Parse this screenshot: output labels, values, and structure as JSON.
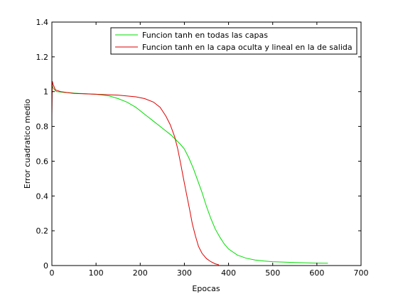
{
  "chart_data": {
    "type": "line",
    "title": "",
    "xlabel": "Epocas",
    "ylabel": "Error cuadratico medio",
    "xlim": [
      0,
      700
    ],
    "ylim": [
      0,
      1.4
    ],
    "x_ticks": [
      0,
      100,
      200,
      300,
      400,
      500,
      600,
      700
    ],
    "y_ticks": [
      0,
      0.2,
      0.4,
      0.6,
      0.8,
      1,
      1.2,
      1.4
    ],
    "grid": false,
    "legend_position": "top-right",
    "series": [
      {
        "name": "Funcion tanh en todas las capas",
        "color": "#00dd00",
        "points": [
          [
            0,
            1.04
          ],
          [
            3,
            1.02
          ],
          [
            10,
            1.0
          ],
          [
            30,
            0.995
          ],
          [
            60,
            0.99
          ],
          [
            100,
            0.985
          ],
          [
            130,
            0.975
          ],
          [
            150,
            0.96
          ],
          [
            170,
            0.94
          ],
          [
            190,
            0.91
          ],
          [
            210,
            0.87
          ],
          [
            230,
            0.83
          ],
          [
            250,
            0.79
          ],
          [
            270,
            0.75
          ],
          [
            290,
            0.7
          ],
          [
            300,
            0.67
          ],
          [
            310,
            0.62
          ],
          [
            320,
            0.56
          ],
          [
            330,
            0.49
          ],
          [
            340,
            0.42
          ],
          [
            350,
            0.34
          ],
          [
            360,
            0.27
          ],
          [
            370,
            0.21
          ],
          [
            380,
            0.165
          ],
          [
            390,
            0.125
          ],
          [
            400,
            0.095
          ],
          [
            420,
            0.06
          ],
          [
            440,
            0.042
          ],
          [
            460,
            0.032
          ],
          [
            480,
            0.026
          ],
          [
            500,
            0.022
          ],
          [
            550,
            0.017
          ],
          [
            600,
            0.014
          ],
          [
            625,
            0.013
          ]
        ]
      },
      {
        "name": "Funcion tanh en la capa oculta y lineal en la de salida",
        "color": "#dd0000",
        "points": [
          [
            0,
            0.86
          ],
          [
            1,
            1.06
          ],
          [
            3,
            1.04
          ],
          [
            8,
            1.01
          ],
          [
            20,
            1.0
          ],
          [
            50,
            0.99
          ],
          [
            100,
            0.985
          ],
          [
            150,
            0.98
          ],
          [
            190,
            0.97
          ],
          [
            210,
            0.96
          ],
          [
            230,
            0.94
          ],
          [
            245,
            0.91
          ],
          [
            258,
            0.86
          ],
          [
            268,
            0.81
          ],
          [
            278,
            0.74
          ],
          [
            285,
            0.67
          ],
          [
            292,
            0.58
          ],
          [
            298,
            0.5
          ],
          [
            305,
            0.41
          ],
          [
            312,
            0.32
          ],
          [
            318,
            0.24
          ],
          [
            325,
            0.17
          ],
          [
            332,
            0.11
          ],
          [
            340,
            0.07
          ],
          [
            350,
            0.04
          ],
          [
            360,
            0.022
          ],
          [
            370,
            0.01
          ],
          [
            378,
            0.004
          ]
        ]
      }
    ]
  }
}
